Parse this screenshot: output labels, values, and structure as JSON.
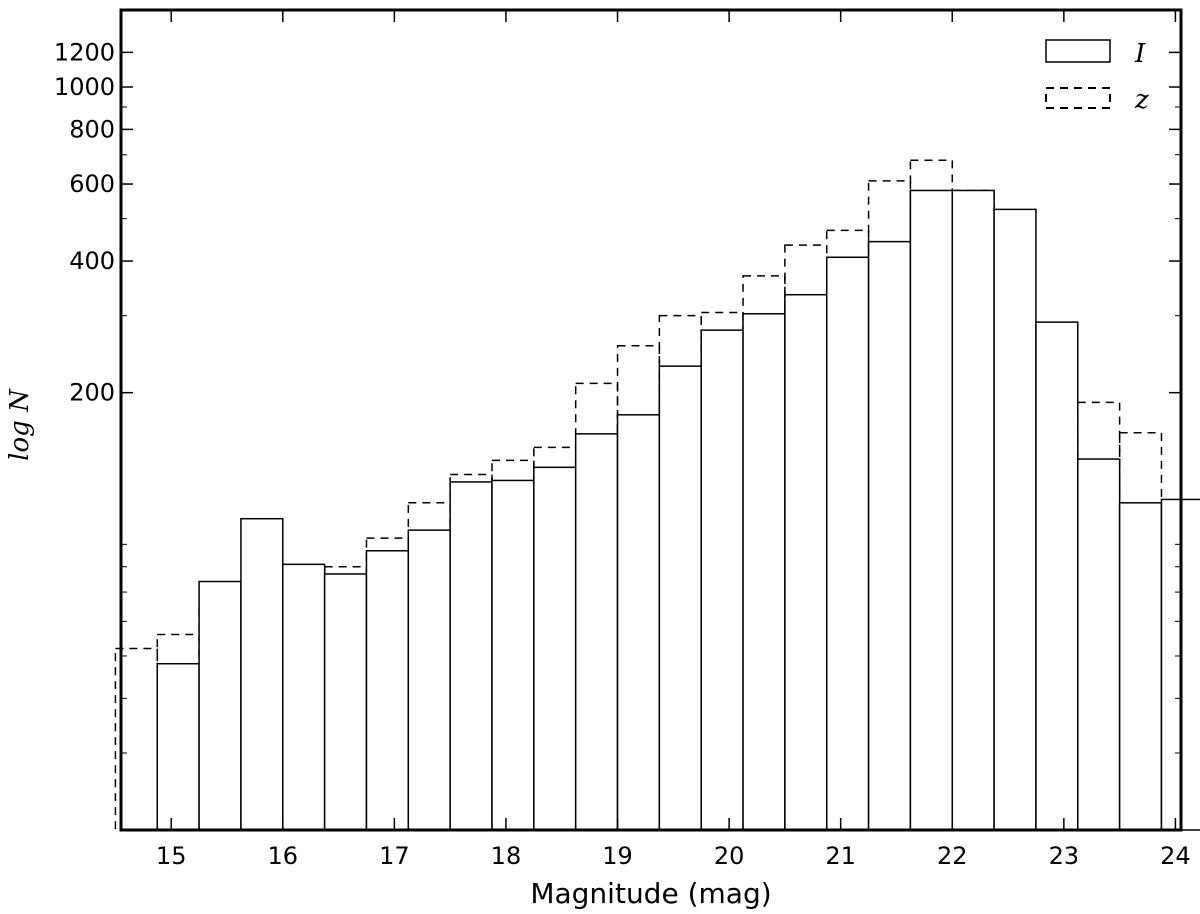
{
  "chart_data": {
    "type": "bar",
    "xlabel": "Magnitude (mag)",
    "ylabel": "log N",
    "xlim": [
      14.55,
      24.05
    ],
    "ylim": [
      20,
      1500
    ],
    "yscale": "log",
    "bin_width": 0.375,
    "x_ticks": [
      15,
      16,
      17,
      18,
      19,
      20,
      21,
      22,
      23,
      24
    ],
    "y_ticks": [
      200,
      400,
      600,
      800,
      1000,
      1200
    ],
    "legend": {
      "position": "top-right"
    },
    "series": [
      {
        "name": "I",
        "style": "solid",
        "bin_starts": [
          14.875,
          15.25,
          15.625,
          16.0,
          16.375,
          16.75,
          17.125,
          17.5,
          17.875,
          18.25,
          18.625,
          19.0,
          19.375,
          19.75,
          20.125,
          20.5,
          20.875,
          21.25,
          21.625,
          22.0,
          22.375,
          22.75,
          23.125,
          23.5,
          23.875
        ],
        "values": [
          48,
          74,
          103,
          81,
          77,
          87,
          97,
          125,
          126,
          135,
          161,
          178,
          230,
          278,
          303,
          335,
          408,
          443,
          580,
          580,
          525,
          290,
          141,
          112,
          114
        ]
      },
      {
        "name": "z",
        "style": "dashed",
        "bin_starts": [
          14.5,
          14.875,
          15.25,
          15.625,
          16.0,
          16.375,
          16.75,
          17.125,
          17.5,
          17.875,
          18.25,
          18.625,
          19.0,
          19.375,
          19.75,
          20.125,
          20.5,
          20.875,
          21.25,
          21.625,
          22.0,
          22.375,
          22.75,
          23.125,
          23.5
        ],
        "values": [
          52,
          56,
          64,
          63,
          80,
          80,
          93,
          112,
          130,
          140,
          150,
          210,
          256,
          300,
          305,
          370,
          435,
          470,
          610,
          680,
          580,
          275,
          158,
          190,
          162
        ]
      }
    ]
  }
}
